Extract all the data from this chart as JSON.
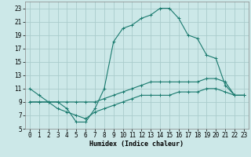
{
  "xlabel": "Humidex (Indice chaleur)",
  "bg_color": "#cce8e8",
  "grid_color": "#aacccc",
  "line_color": "#1a7a6e",
  "ylim": [
    5,
    24
  ],
  "xlim": [
    -0.5,
    23.5
  ],
  "yticks": [
    5,
    7,
    9,
    11,
    13,
    15,
    17,
    19,
    21,
    23
  ],
  "xticks": [
    0,
    1,
    2,
    3,
    4,
    5,
    6,
    7,
    8,
    9,
    10,
    11,
    12,
    13,
    14,
    15,
    16,
    17,
    18,
    19,
    20,
    21,
    22,
    23
  ],
  "line1_x": [
    0,
    1,
    2,
    3,
    4,
    5,
    6,
    7,
    8,
    9,
    10,
    11,
    12,
    13,
    14,
    15,
    16,
    17,
    18,
    19,
    20,
    21,
    22,
    23
  ],
  "line1_y": [
    11,
    10,
    9,
    9,
    8,
    6,
    6,
    8,
    11,
    18,
    20,
    20.5,
    21.5,
    22,
    23,
    23,
    21.5,
    19,
    18.5,
    16,
    15.5,
    11.5,
    10,
    10
  ],
  "line2_x": [
    0,
    1,
    2,
    3,
    4,
    5,
    6,
    7,
    8,
    9,
    10,
    11,
    12,
    13,
    14,
    15,
    16,
    17,
    18,
    19,
    20,
    21,
    22,
    23
  ],
  "line2_y": [
    9,
    9,
    9,
    9,
    9,
    9,
    9,
    9,
    9.5,
    10,
    10.5,
    11,
    11.5,
    12,
    12,
    12,
    12,
    12,
    12,
    12.5,
    12.5,
    12,
    10,
    10
  ],
  "line3_x": [
    0,
    1,
    2,
    3,
    4,
    5,
    6,
    7,
    8,
    9,
    10,
    11,
    12,
    13,
    14,
    15,
    16,
    17,
    18,
    19,
    20,
    21,
    22,
    23
  ],
  "line3_y": [
    9,
    9,
    9,
    8,
    7.5,
    7,
    6.5,
    7.5,
    8,
    8.5,
    9,
    9.5,
    10,
    10,
    10,
    10,
    10.5,
    10.5,
    10.5,
    11,
    11,
    10.5,
    10,
    10
  ],
  "marker_size": 3.0,
  "linewidth": 0.8,
  "tick_labelsize": 5.5,
  "xlabel_fontsize": 6.0
}
